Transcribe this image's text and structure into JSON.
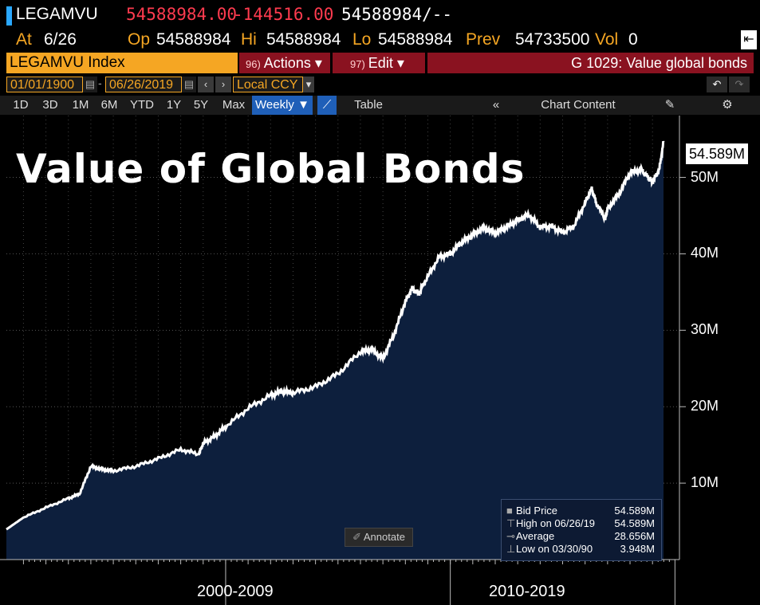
{
  "header": {
    "ticker": "LEGAMVU",
    "last": "54588984.00",
    "change": "-144516.00",
    "bid_ask": "54588984/--",
    "at_label": "At",
    "at_value": "6/26",
    "op_label": "Op",
    "op_value": "54588984",
    "hi_label": "Hi",
    "hi_value": "54588984",
    "lo_label": "Lo",
    "lo_value": "54588984",
    "prev_label": "Prev",
    "prev_value": "54733500",
    "vol_label": "Vol",
    "vol_value": "0"
  },
  "toolbar": {
    "security": "LEGAMVU Index",
    "actions_num": "96)",
    "actions_label": "Actions ▾",
    "edit_num": "97)",
    "edit_label": "Edit ▾",
    "chart_name": "G 1029: Value global bonds",
    "start_date": "01/01/1900",
    "end_date": "06/26/2019",
    "currency": "Local CCY",
    "table_label": "Table",
    "chart_content_label": "Chart Content"
  },
  "tabs": [
    "1D",
    "3D",
    "1M",
    "6M",
    "YTD",
    "1Y",
    "5Y",
    "Max",
    "Weekly ▼"
  ],
  "icons": {
    "calendar": "calendar-icon",
    "prev": "chevron-left-icon",
    "next": "chevron-right-icon",
    "dropdown": "chevron-down-icon",
    "undo": "undo-icon",
    "redo": "redo-icon",
    "line_chart": "line-chart-icon",
    "collapse": "double-chevron-left-icon",
    "edit": "edit-icon",
    "settings": "gear-icon",
    "exit": "exit-icon",
    "annotate": "pencil-icon"
  },
  "colors": {
    "accent": "#f5a623",
    "up": "#ff3b4f",
    "area": "#0d1f3d",
    "line": "#ffffff",
    "toolbar_red": "#8a1220",
    "active_tab": "#1f5fb8"
  },
  "chart_data": {
    "type": "area",
    "title": "Value of Global Bonds",
    "xlabel": "",
    "ylabel": "",
    "x_tick_labels": [
      "2000-2009",
      "2010-2019"
    ],
    "y_tick_labels": [
      "10M",
      "20M",
      "30M",
      "40M",
      "50M"
    ],
    "y_ticks": [
      10,
      20,
      30,
      40,
      50
    ],
    "ylim": [
      0,
      56
    ],
    "xlim": [
      1990.24,
      2019.49
    ],
    "last_value_label": "54.589M",
    "units": "M",
    "series": [
      {
        "x": [
          1990.24,
          1991.0,
          1992.0,
          1993.0,
          1993.5,
          1994.0,
          1994.5,
          1995.0,
          1996.0,
          1997.0,
          1998.0,
          1998.8,
          1999.0,
          1999.5,
          2000.0,
          2001.0,
          2002.0,
          2002.5,
          2003.0,
          2004.0,
          2005.0,
          2006.0,
          2006.5,
          2007.0,
          2007.5,
          2008.0,
          2008.3,
          2008.6,
          2008.9,
          2009.5,
          2010.0,
          2010.5,
          2011.0,
          2011.5,
          2012.0,
          2012.5,
          2013.0,
          2013.5,
          2014.0,
          2014.5,
          2015.0,
          2015.5,
          2016.0,
          2016.3,
          2016.5,
          2016.9,
          2017.0,
          2017.5,
          2018.0,
          2018.5,
          2018.8,
          2019.0,
          2019.3,
          2019.49
        ],
        "values": [
          3.948,
          5.5,
          6.8,
          8.0,
          8.6,
          12.2,
          11.8,
          11.6,
          12.2,
          13.2,
          14.4,
          13.8,
          15.2,
          16.1,
          17.4,
          19.8,
          21.5,
          22.0,
          21.8,
          22.6,
          24.3,
          27.2,
          27.5,
          26.3,
          29.5,
          33.8,
          35.4,
          34.8,
          36.5,
          39.6,
          40.0,
          41.5,
          42.5,
          43.4,
          42.7,
          43.5,
          44.4,
          45.1,
          43.5,
          43.6,
          42.8,
          43.6,
          46.7,
          48.5,
          46.6,
          44.6,
          45.9,
          47.8,
          50.6,
          51.0,
          50.0,
          49.4,
          51.0,
          54.589
        ]
      }
    ],
    "legend": {
      "placement": "bottom-right",
      "entries": [
        {
          "label": "Bid Price",
          "value": "54.589M"
        },
        {
          "label": "High on 06/26/19",
          "value": "54.589M"
        },
        {
          "label": "Average",
          "value": "28.656M"
        },
        {
          "label": "Low on 03/30/90",
          "value": "3.948M"
        }
      ]
    },
    "annotate_label": "Annotate",
    "grid": true
  }
}
